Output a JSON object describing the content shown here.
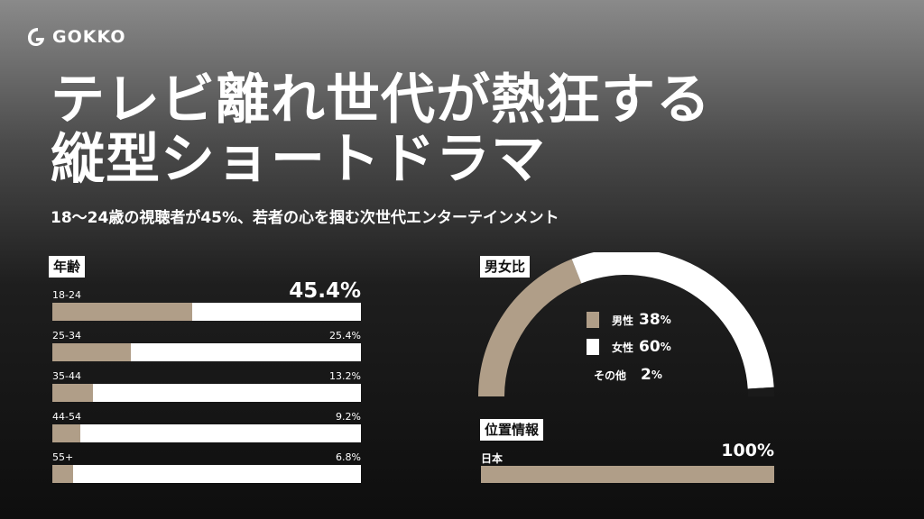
{
  "brand": {
    "name": "GOKKO",
    "icon": "gokko-logo-icon"
  },
  "title_line1": "テレビ離れ世代が熱狂する",
  "title_line2": "縦型ショートドラマ",
  "subtitle": "18〜24歳の視聴者が45%、若者の心を掴む次世代エンターテインメント",
  "colors": {
    "accent": "#b09e88",
    "track": "#ffffff",
    "label_bg": "#ffffff"
  },
  "chart_data": [
    {
      "type": "bar",
      "title": "年齢",
      "orientation": "horizontal",
      "categories": [
        "18-24",
        "25-34",
        "35-44",
        "44-54",
        "55+"
      ],
      "values": [
        45.4,
        25.4,
        13.2,
        9.2,
        6.8
      ],
      "value_labels": [
        "45.4%",
        "25.4%",
        "13.2%",
        "9.2%",
        "6.8%"
      ],
      "unit": "%",
      "xlim": [
        0,
        100
      ]
    },
    {
      "type": "pie",
      "style": "semi-donut",
      "title": "男女比",
      "categories": [
        "男性",
        "女性",
        "その他"
      ],
      "values": [
        38,
        60,
        2
      ],
      "value_nums": [
        "38",
        "60",
        "2"
      ],
      "unit": "%",
      "colors": [
        "#b09e88",
        "#ffffff",
        "#1a1a1a"
      ]
    },
    {
      "type": "bar",
      "title": "位置情報",
      "orientation": "horizontal",
      "categories": [
        "日本"
      ],
      "values": [
        100
      ],
      "value_labels": [
        "100%"
      ],
      "unit": "%",
      "xlim": [
        0,
        100
      ]
    }
  ]
}
